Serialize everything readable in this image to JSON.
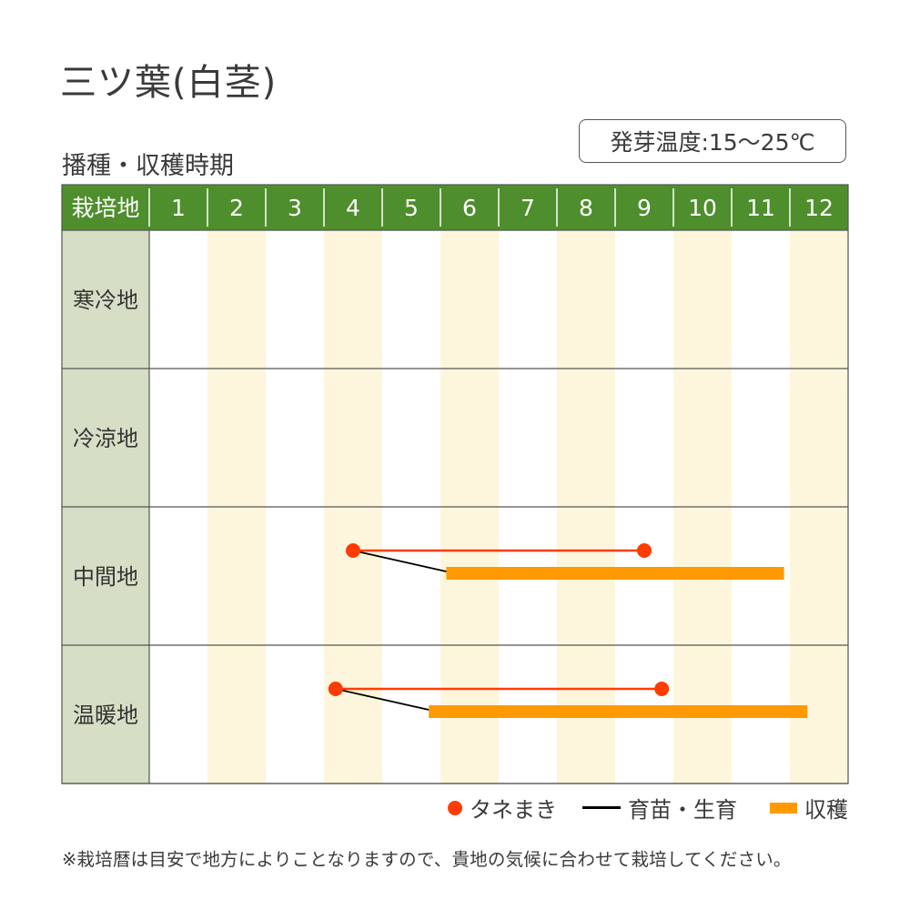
{
  "title": "三ツ葉(白茎)",
  "subtitle": "播種・収穫時期",
  "germination_temp": "発芽温度:15〜25℃",
  "colors": {
    "header_green": "#4e8e2c",
    "row_label_bg": "#d6dfc6",
    "stripe": "#fdf6dc",
    "sowing": "#ff3c00",
    "harvest": "#ff9900",
    "growing": "#000000"
  },
  "chart_data": {
    "type": "gantt",
    "header_label": "栽培地",
    "months": [
      "1",
      "2",
      "3",
      "4",
      "5",
      "6",
      "7",
      "8",
      "9",
      "10",
      "11",
      "12"
    ],
    "rows": [
      {
        "region": "寒冷地",
        "sowing": null,
        "harvest": null
      },
      {
        "region": "冷涼地",
        "sowing": null,
        "harvest": null
      },
      {
        "region": "中間地",
        "sowing": [
          4.5,
          9.5
        ],
        "harvest": [
          6.1,
          11.9
        ]
      },
      {
        "region": "温暖地",
        "sowing": [
          4.2,
          9.8
        ],
        "harvest": [
          5.8,
          12.3
        ]
      }
    ]
  },
  "legend": {
    "sowing": "タネまき",
    "growing": "育苗・生育",
    "harvest": "収穫"
  },
  "footnote": "※栽培暦は目安で地方によりことなりますので、貴地の気候に合わせて栽培してください。"
}
